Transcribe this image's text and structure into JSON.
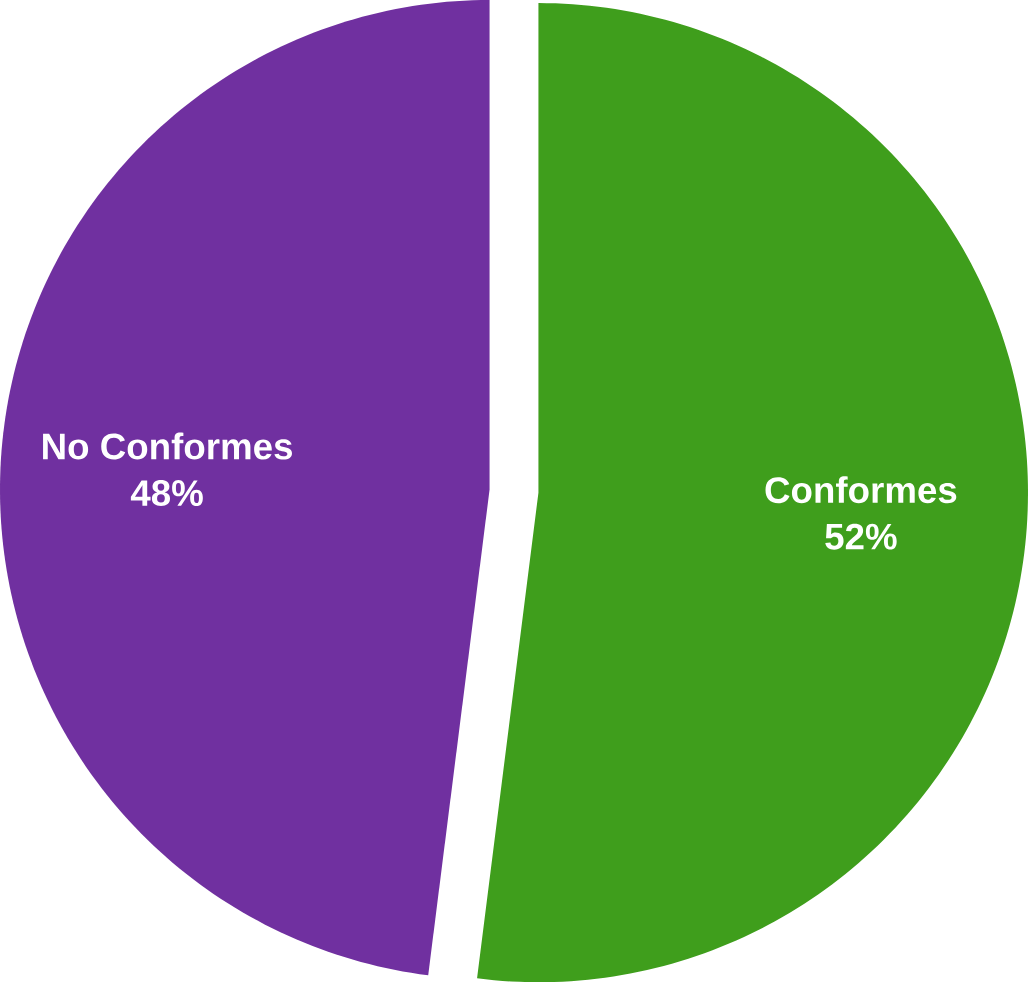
{
  "chart_data": {
    "type": "pie",
    "categories": [
      "Conformes",
      "No Conformes"
    ],
    "values": [
      52,
      48
    ],
    "value_labels": [
      "52%",
      "48%"
    ],
    "colors": [
      "#3f9e1c",
      "#7030a0"
    ]
  }
}
